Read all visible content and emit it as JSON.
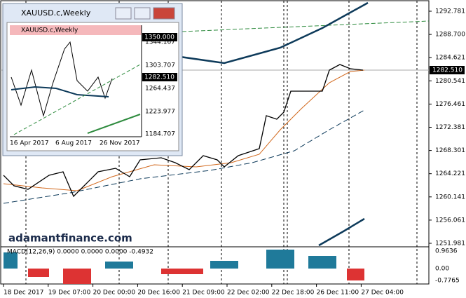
{
  "main": {
    "price_labels": [
      "1292.781",
      "1288.700",
      "1284.621",
      "1280.541",
      "1276.461",
      "1272.381",
      "1268.301",
      "1264.221",
      "1260.141",
      "1256.061",
      "1251.981"
    ],
    "current_price": "1282.510",
    "indicator_label": "MACD(12,26,9) 0.0000 0.0000 0.0000 -0.4932",
    "indicator_levels": [
      "0.9636",
      "0.00",
      "-0.7765"
    ],
    "time_labels": [
      "18 Dec 2017",
      "19 Dec 07:00",
      "20 Dec 00:00",
      "20 Dec 16:00",
      "21 Dec 09:00",
      "22 Dec 02:00",
      "22 Dec 18:00",
      "26 Dec 11:00",
      "27 Dec 04:00"
    ]
  },
  "watermark": "adamantfinance.com",
  "window": {
    "title": "XAUUSD.c,Weekly",
    "chart_label": "XAUUSD.c,Weekly",
    "high_price": "1350.000",
    "price_labels": [
      "1344.167",
      "1303.707",
      "1264.437",
      "1223.977",
      "1184.707"
    ],
    "current_price": "1282.510",
    "dates": [
      "16 Apr 2017",
      "6 Aug 2017",
      "26 Nov 2017"
    ]
  }
}
